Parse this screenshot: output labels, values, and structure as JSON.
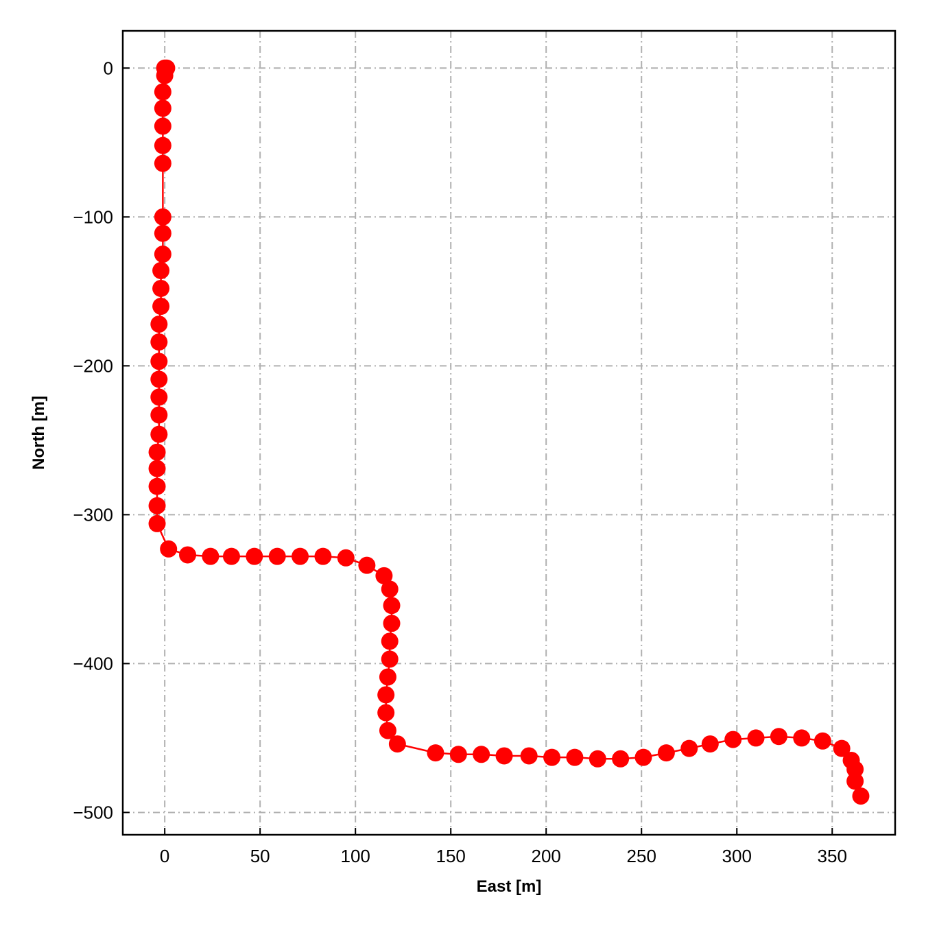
{
  "chart_data": {
    "type": "line",
    "title": "",
    "xlabel": "East [m]",
    "ylabel": "North [m]",
    "xlim": [
      -22,
      383
    ],
    "ylim": [
      -515,
      25
    ],
    "xticks": [
      0,
      50,
      100,
      150,
      200,
      250,
      300,
      350
    ],
    "yticks": [
      0,
      -100,
      -200,
      -300,
      -400,
      -500
    ],
    "xtick_labels": [
      "0",
      "50",
      "100",
      "150",
      "200",
      "250",
      "300",
      "350"
    ],
    "ytick_labels": [
      "0",
      "−100",
      "−200",
      "−300",
      "−400",
      "−500"
    ],
    "grid": true,
    "legend": "none",
    "color": "#ff0000",
    "marker": "circle",
    "series": [
      {
        "x": [
          0,
          1,
          0,
          -1,
          -1,
          -1,
          -1,
          -1,
          -1,
          -1,
          -1,
          -2,
          -2,
          -2,
          -3,
          -3,
          -3,
          -3,
          -3,
          -3,
          -3,
          -4,
          -4,
          -4,
          -4,
          -4,
          2,
          12,
          24,
          35,
          47,
          59,
          71,
          83,
          95,
          106,
          115,
          118,
          119,
          119,
          118,
          118,
          117,
          116,
          116,
          117,
          122,
          142,
          154,
          166,
          178,
          191,
          203,
          215,
          227,
          239,
          251,
          263,
          275,
          286,
          298,
          310,
          322,
          334,
          345,
          355,
          360,
          362,
          362,
          365
        ],
        "y": [
          0,
          0,
          -5,
          -16,
          -27,
          -39,
          -52,
          -64,
          -100,
          -111,
          -125,
          -136,
          -148,
          -160,
          -172,
          -184,
          -197,
          -209,
          -221,
          -233,
          -246,
          -258,
          -269,
          -281,
          -294,
          -306,
          -323,
          -327,
          -328,
          -328,
          -328,
          -328,
          -328,
          -328,
          -329,
          -334,
          -341,
          -350,
          -361,
          -373,
          -385,
          -397,
          -409,
          -421,
          -433,
          -445,
          -454,
          -460,
          -461,
          -461,
          -462,
          -462,
          -463,
          -463,
          -464,
          -464,
          -463,
          -460,
          -457,
          -454,
          -451,
          -450,
          -449,
          -450,
          -452,
          -457,
          -465,
          -471,
          -479,
          -489
        ]
      }
    ]
  }
}
